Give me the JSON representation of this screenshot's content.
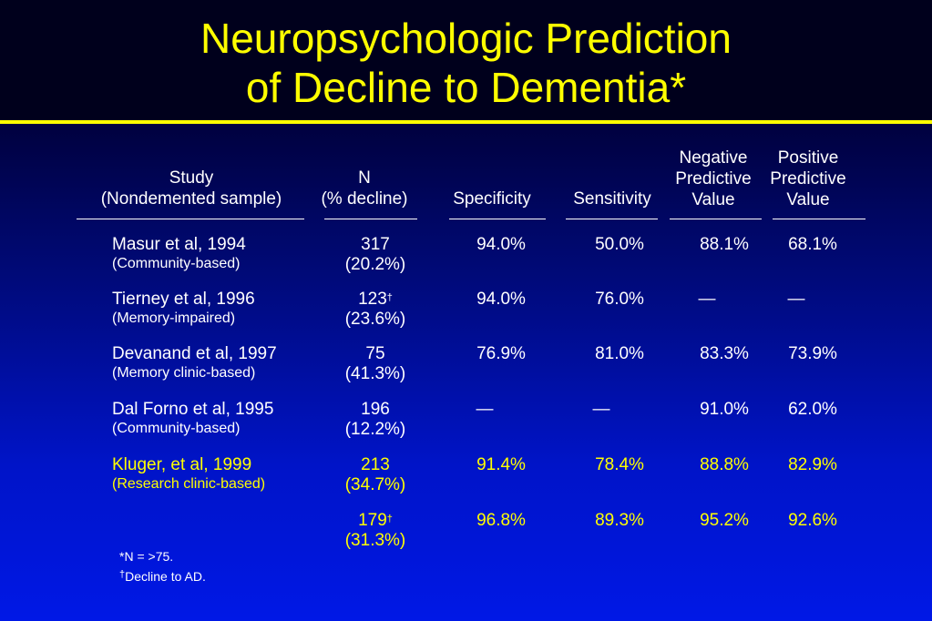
{
  "title": {
    "line1": "Neuropsychologic Prediction",
    "line2": "of Decline to Dementia*"
  },
  "headers": {
    "study": [
      "Study",
      "(Nondemented sample)"
    ],
    "n": [
      "N",
      "(% decline)"
    ],
    "specificity": [
      "Specificity"
    ],
    "sensitivity": [
      "Sensitivity"
    ],
    "npv": [
      "Negative",
      "Predictive",
      "Value"
    ],
    "ppv": [
      "Positive",
      "Predictive",
      "Value"
    ]
  },
  "rows": [
    {
      "study": "Masur et al, 1994",
      "sample": "(Community-based)",
      "n": "317",
      "n_mark": "",
      "pct": "(20.2%)",
      "spec": "94.0%",
      "sens": "50.0%",
      "npv": "88.1%",
      "ppv": "68.1%"
    },
    {
      "study": "Tierney et al, 1996",
      "sample": "(Memory-impaired)",
      "n": "123",
      "n_mark": "†",
      "pct": "(23.6%)",
      "spec": "94.0%",
      "sens": "76.0%",
      "npv": "—",
      "ppv": "—"
    },
    {
      "study": "Devanand et al, 1997",
      "sample": "(Memory clinic-based)",
      "n": "75",
      "n_mark": "",
      "pct": "(41.3%)",
      "spec": "76.9%",
      "sens": "81.0%",
      "npv": "83.3%",
      "ppv": "73.9%"
    },
    {
      "study": "Dal Forno et al, 1995",
      "sample": "(Community-based)",
      "n": "196",
      "n_mark": "",
      "pct": "(12.2%)",
      "spec": "—",
      "sens": "—",
      "npv": "91.0%",
      "ppv": "62.0%"
    },
    {
      "study": "Kluger, et al, 1999",
      "sample": "(Research clinic-based)",
      "n": "213",
      "n_mark": "",
      "pct": "(34.7%)",
      "spec": "91.4%",
      "sens": "78.4%",
      "npv": "88.8%",
      "ppv": "82.9%"
    },
    {
      "study": "",
      "sample": "",
      "n": "179",
      "n_mark": "†",
      "pct": "(31.3%)",
      "spec": "96.8%",
      "sens": "89.3%",
      "npv": "95.2%",
      "ppv": "92.6%"
    }
  ],
  "footnotes": {
    "f1": "*N = >75.",
    "f2_mark": "†",
    "f2": "Decline to AD."
  },
  "colors": {
    "title": "#ffff00",
    "highlight": "#ffff00",
    "text": "#ffffff"
  }
}
